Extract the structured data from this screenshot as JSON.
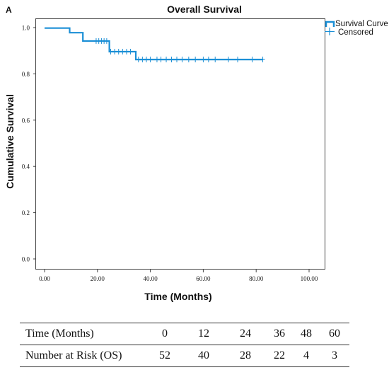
{
  "panel_label": "A",
  "chart_data": {
    "type": "line",
    "title": "Overall Survival",
    "xlabel": "Time (Months)",
    "ylabel": "Cumulative Survival",
    "xlim": [
      0,
      100
    ],
    "ylim": [
      0,
      1.0
    ],
    "x_ticks": [
      "0.00",
      "20.00",
      "40.00",
      "60.00",
      "80.00",
      "100.00"
    ],
    "y_ticks": [
      "0.0",
      "0.2",
      "0.4",
      "0.6",
      "0.8",
      "1.0"
    ],
    "legend_position": "top-right",
    "series": [
      {
        "name": "Survival Curve",
        "style": "step",
        "color": "#1b8fd6",
        "points": [
          [
            0,
            0.998
          ],
          [
            9.5,
            0.998
          ],
          [
            9.5,
            0.978
          ],
          [
            14.5,
            0.978
          ],
          [
            14.5,
            0.942
          ],
          [
            24.5,
            0.942
          ],
          [
            24.5,
            0.896
          ],
          [
            34.5,
            0.896
          ],
          [
            34.5,
            0.862
          ],
          [
            82.5,
            0.862
          ]
        ]
      },
      {
        "name": "Censored",
        "style": "markers",
        "color": "#1b8fd6",
        "points": [
          [
            19.5,
            0.942
          ],
          [
            20.5,
            0.942
          ],
          [
            21.5,
            0.942
          ],
          [
            22.5,
            0.942
          ],
          [
            23.5,
            0.942
          ],
          [
            25.0,
            0.896
          ],
          [
            26.5,
            0.896
          ],
          [
            28.0,
            0.896
          ],
          [
            29.5,
            0.896
          ],
          [
            31.0,
            0.896
          ],
          [
            32.5,
            0.896
          ],
          [
            35.5,
            0.862
          ],
          [
            37.0,
            0.862
          ],
          [
            38.5,
            0.862
          ],
          [
            40.0,
            0.862
          ],
          [
            42.5,
            0.862
          ],
          [
            44.0,
            0.862
          ],
          [
            46.0,
            0.862
          ],
          [
            48.0,
            0.862
          ],
          [
            50.0,
            0.862
          ],
          [
            52.0,
            0.862
          ],
          [
            54.5,
            0.862
          ],
          [
            57.0,
            0.862
          ],
          [
            60.0,
            0.862
          ],
          [
            62.0,
            0.862
          ],
          [
            64.5,
            0.862
          ],
          [
            69.5,
            0.862
          ],
          [
            73.0,
            0.862
          ],
          [
            78.5,
            0.862
          ],
          [
            82.5,
            0.862
          ]
        ]
      }
    ]
  },
  "risk_table": {
    "row_time_label": "Time (Months)",
    "time_values": [
      "0",
      "12",
      "24",
      "36",
      "48",
      "60"
    ],
    "row_risk_label": "Number at Risk (OS)",
    "risk_values": [
      "52",
      "40",
      "28",
      "22",
      "4",
      "3"
    ]
  }
}
